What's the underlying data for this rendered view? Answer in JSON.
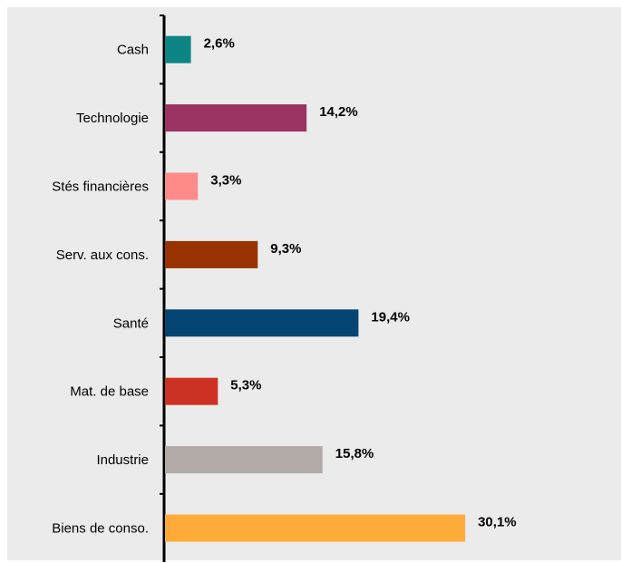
{
  "chart_data": {
    "type": "bar",
    "orientation": "horizontal",
    "categories": [
      "Cash",
      "Technologie",
      "Stés financières",
      "Serv. aux cons.",
      "Santé",
      "Mat. de base",
      "Industrie",
      "Biens de conso."
    ],
    "values": [
      2.6,
      14.2,
      3.3,
      9.3,
      19.4,
      5.3,
      15.8,
      30.1
    ],
    "value_labels": [
      "2,6%",
      "14,2%",
      "3,3%",
      "9,3%",
      "19,4%",
      "5,3%",
      "15,8%",
      "30,1%"
    ],
    "colors": [
      "#0e8585",
      "#9b3363",
      "#ff8a8a",
      "#983300",
      "#054574",
      "#cd3123",
      "#b3aba8",
      "#ffab3a"
    ],
    "background": "#ebebeb",
    "title": "",
    "xlabel": "",
    "ylabel": "",
    "grid": false,
    "legend": "none"
  }
}
